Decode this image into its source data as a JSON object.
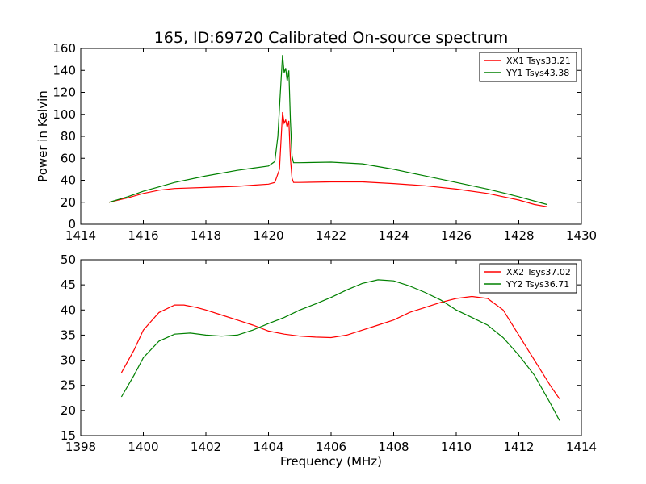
{
  "figure_title": "165, ID:69720 Calibrated On-source spectrum",
  "colors": {
    "series1": "#ff0000",
    "series2": "#008000",
    "axes": "#000000",
    "background": "#ffffff"
  },
  "chart_data": [
    {
      "type": "line",
      "title": "165, ID:69720 Calibrated On-source spectrum",
      "xlabel": "",
      "ylabel": "Power in Kelvin",
      "xlim": [
        1414,
        1430
      ],
      "ylim": [
        0,
        160
      ],
      "xticks": [
        1414,
        1416,
        1418,
        1420,
        1422,
        1424,
        1426,
        1428,
        1430
      ],
      "yticks": [
        0,
        20,
        40,
        60,
        80,
        100,
        120,
        140,
        160
      ],
      "grid": false,
      "legend": "top-right",
      "series": [
        {
          "name": "XX1 Tsys33.21",
          "color": "#ff0000",
          "x": [
            1414.9,
            1415.5,
            1416,
            1416.5,
            1417,
            1418,
            1419,
            1419.5,
            1420,
            1420.2,
            1420.35,
            1420.45,
            1420.5,
            1420.55,
            1420.6,
            1420.65,
            1420.7,
            1420.75,
            1420.8,
            1421,
            1422,
            1423,
            1424,
            1425,
            1426,
            1427,
            1428,
            1428.5,
            1428.9
          ],
          "y": [
            20,
            24,
            28,
            31,
            32.5,
            33.5,
            34.5,
            35.5,
            36.5,
            38,
            50,
            102,
            92,
            95,
            88,
            94,
            60,
            42,
            38,
            38,
            38.5,
            38.5,
            37,
            35,
            32,
            28,
            22,
            18,
            16
          ]
        },
        {
          "name": "YY1 Tsys43.38",
          "color": "#008000",
          "x": [
            1414.9,
            1415.5,
            1416,
            1416.5,
            1417,
            1418,
            1419,
            1419.5,
            1420,
            1420.2,
            1420.3,
            1420.38,
            1420.45,
            1420.5,
            1420.55,
            1420.6,
            1420.65,
            1420.7,
            1420.75,
            1420.8,
            1421,
            1422,
            1423,
            1424,
            1425,
            1426,
            1427,
            1428,
            1428.9
          ],
          "y": [
            20,
            25,
            30,
            34,
            38,
            44,
            49,
            51,
            53,
            57,
            80,
            120,
            154,
            138,
            142,
            130,
            140,
            95,
            62,
            56,
            56,
            56.5,
            55,
            50,
            44,
            38,
            32,
            25,
            18
          ]
        }
      ]
    },
    {
      "type": "line",
      "title": "",
      "xlabel": "Frequency (MHz)",
      "ylabel": "",
      "xlim": [
        1398,
        1414
      ],
      "ylim": [
        15,
        50
      ],
      "xticks": [
        1398,
        1400,
        1402,
        1404,
        1406,
        1408,
        1410,
        1412,
        1414
      ],
      "yticks": [
        15,
        20,
        25,
        30,
        35,
        40,
        45,
        50
      ],
      "grid": false,
      "legend": "top-right",
      "series": [
        {
          "name": "XX2 Tsys37.02",
          "color": "#ff0000",
          "x": [
            1399.3,
            1399.7,
            1400,
            1400.5,
            1401,
            1401.3,
            1401.7,
            1402,
            1402.5,
            1403,
            1403.5,
            1404,
            1404.5,
            1405,
            1405.5,
            1406,
            1406.5,
            1407,
            1407.5,
            1408,
            1408.5,
            1409,
            1409.5,
            1410,
            1410.5,
            1411,
            1411.5,
            1412,
            1412.5,
            1413,
            1413.3
          ],
          "y": [
            27.5,
            32,
            36,
            39.5,
            41,
            41,
            40.5,
            40,
            39,
            38,
            37,
            35.8,
            35.2,
            34.8,
            34.6,
            34.5,
            35,
            36,
            37,
            38,
            39.5,
            40.5,
            41.5,
            42.3,
            42.7,
            42.3,
            40,
            35,
            30,
            25,
            22.3
          ]
        },
        {
          "name": "YY2 Tsys36.71",
          "color": "#008000",
          "x": [
            1399.3,
            1399.7,
            1400,
            1400.5,
            1401,
            1401.5,
            1402,
            1402.5,
            1403,
            1403.5,
            1404,
            1404.5,
            1405,
            1405.5,
            1406,
            1406.5,
            1407,
            1407.5,
            1408,
            1408.5,
            1409,
            1409.5,
            1410,
            1410.5,
            1411,
            1411.5,
            1412,
            1412.5,
            1413,
            1413.3
          ],
          "y": [
            22.7,
            27,
            30.5,
            33.8,
            35.2,
            35.4,
            35,
            34.8,
            35,
            36,
            37.3,
            38.5,
            40,
            41.2,
            42.5,
            44,
            45.3,
            46,
            45.8,
            44.8,
            43.5,
            42,
            40,
            38.5,
            37,
            34.5,
            31,
            27,
            21.5,
            18
          ]
        }
      ]
    }
  ]
}
